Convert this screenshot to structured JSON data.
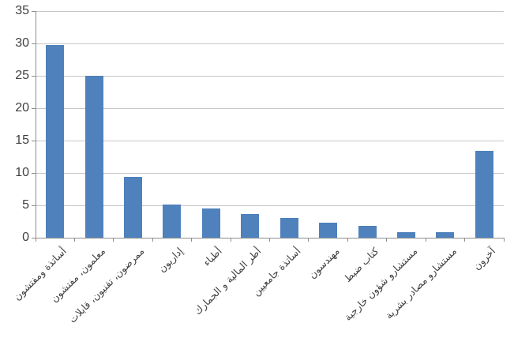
{
  "chart_data": {
    "type": "bar",
    "title": "",
    "xlabel": "",
    "ylabel": "",
    "categories": [
      "أساتذة ومفتشون",
      "معلمون، مفتشون",
      "ممرضون، تقنيون، قابلات",
      "إداريون",
      "أطباء",
      "أطر المالية و الجمارك",
      "أساتذة جامعيين",
      "مهندسون",
      "كتاب ضبط",
      "مستشارو شؤون خارجية",
      "مستشارو مصادر بشرية",
      "آخرون"
    ],
    "values": [
      29.8,
      25,
      9.4,
      5.1,
      4.5,
      3.7,
      3.1,
      2.3,
      1.8,
      0.8,
      0.9,
      13.4
    ],
    "ylim": [
      0,
      35
    ],
    "yticks": [
      0,
      5,
      10,
      15,
      20,
      25,
      30,
      35
    ],
    "grid": true,
    "legend": "none",
    "label_rotation_deg": -45,
    "colors": {
      "bar": "#4f81bd",
      "gridline": "#c6c6c6",
      "axis": "#8e8e8e",
      "text": "#404040"
    }
  }
}
